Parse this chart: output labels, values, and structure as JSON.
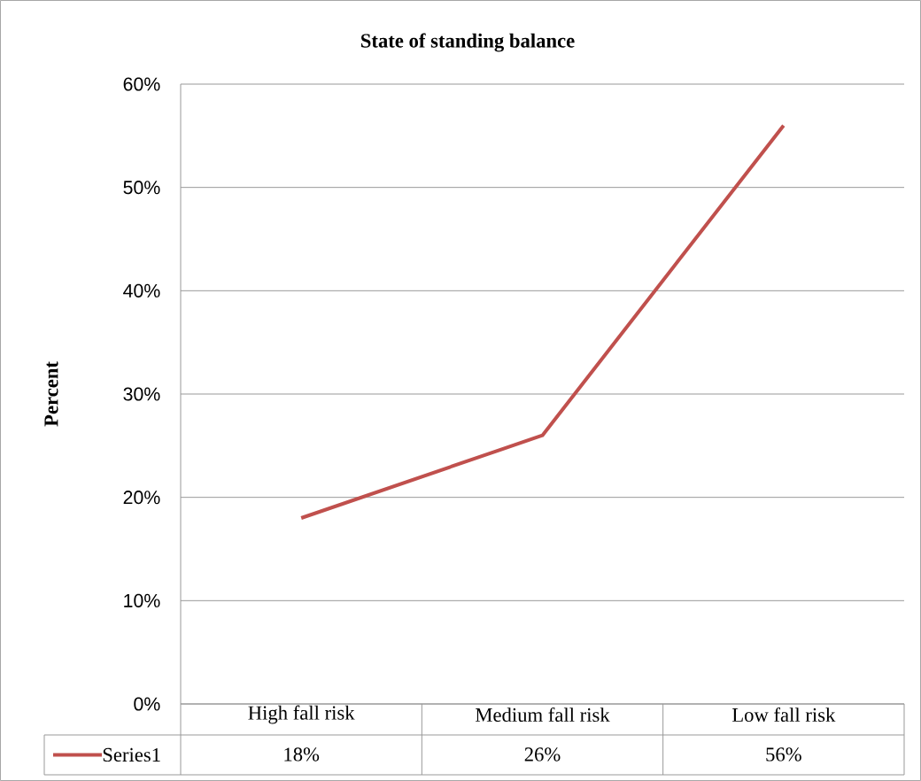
{
  "chart_data": {
    "type": "line",
    "title": "State of standing balance",
    "ylabel": "Percent",
    "categories": [
      "High fall risk",
      "Medium fall risk",
      "Low fall risk"
    ],
    "series": [
      {
        "name": "Series1",
        "color": "#c0504d",
        "values": [
          18,
          26,
          56
        ],
        "value_labels": [
          "18%",
          "26%",
          "56%"
        ]
      }
    ],
    "ylim": [
      0,
      60
    ],
    "yticks": [
      {
        "value": 0,
        "label": "0%"
      },
      {
        "value": 10,
        "label": "10%"
      },
      {
        "value": 20,
        "label": "20%"
      },
      {
        "value": 30,
        "label": "30%"
      },
      {
        "value": 40,
        "label": "40%"
      },
      {
        "value": 50,
        "label": "50%"
      },
      {
        "value": 60,
        "label": "60%"
      }
    ],
    "grid": "y",
    "legend": "bottom",
    "marker": "none",
    "line_style": "solid"
  }
}
